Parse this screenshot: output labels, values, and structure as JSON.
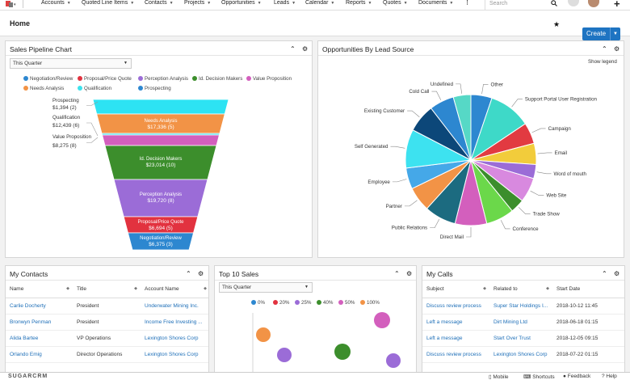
{
  "nav": {
    "items": [
      "Accounts",
      "Quoted Line Items",
      "Contacts",
      "Projects",
      "Opportunities",
      "Leads",
      "Calendar",
      "Reports",
      "Quotes",
      "Documents"
    ],
    "search_placeholder": "Search"
  },
  "header": {
    "title": "Home",
    "create_label": "Create"
  },
  "pipeline": {
    "title": "Sales Pipeline Chart",
    "filter": "This Quarter",
    "chart_data": {
      "type": "funnel",
      "legend": [
        {
          "name": "Negotiation/Review",
          "color": "#2d87d0"
        },
        {
          "name": "Proposal/Price Quote",
          "color": "#e2323f"
        },
        {
          "name": "Perception Analysis",
          "color": "#9b6cd7"
        },
        {
          "name": "Id. Decision Makers",
          "color": "#3c8e2c"
        },
        {
          "name": "Value Proposition",
          "color": "#d35fbd"
        },
        {
          "name": "Needs Analysis",
          "color": "#f29346"
        },
        {
          "name": "Qualification",
          "color": "#3de2ec"
        },
        {
          "name": "Prospecting",
          "color": "#2d87d0"
        }
      ],
      "stages": [
        {
          "name": "Prospecting",
          "value": "$1,394 (2)",
          "color": "#2de3f3"
        },
        {
          "name": "Needs Analysis",
          "value": "$17,336 (5)",
          "color": "#f29346"
        },
        {
          "name": "Qualification",
          "value": "$12,439 (6)",
          "color": "#3de2ec"
        },
        {
          "name": "Value Proposition",
          "value": "$8,275 (8)",
          "color": "#d35fbd"
        },
        {
          "name": "Id. Decision Makers",
          "value": "$23,014 (10)",
          "color": "#3c8e2c"
        },
        {
          "name": "Perception Analysis",
          "value": "$19,720 (8)",
          "color": "#9b6cd7"
        },
        {
          "name": "Proposal/Price Quote",
          "value": "$6,694 (5)",
          "color": "#e2323f"
        },
        {
          "name": "Negotiation/Review",
          "value": "$6,375 (3)",
          "color": "#2d87d0"
        }
      ]
    }
  },
  "leadsource": {
    "title": "Opportunities By Lead Source",
    "show_legend": "Show legend",
    "chart_data": {
      "type": "pie",
      "slices": [
        {
          "label": "Other",
          "value": 6,
          "color": "#2d87d0"
        },
        {
          "label": "Support Portal User Registration",
          "value": 12,
          "color": "#3ed9c8"
        },
        {
          "label": "Campaign",
          "value": 6,
          "color": "#e23a41"
        },
        {
          "label": "Email",
          "value": 6,
          "color": "#f2cc3b"
        },
        {
          "label": "Word of mouth",
          "value": 4,
          "color": "#9b6cd7"
        },
        {
          "label": "Web Site",
          "value": 7,
          "color": "#d889df"
        },
        {
          "label": "Trade Show",
          "value": 4,
          "color": "#3c8e2c"
        },
        {
          "label": "Conference",
          "value": 8,
          "color": "#6bd84a"
        },
        {
          "label": "Direct Mail",
          "value": 9,
          "color": "#d35fbd"
        },
        {
          "label": "Public Relations",
          "value": 9,
          "color": "#1c6b80"
        },
        {
          "label": "Partner",
          "value": 7,
          "color": "#f29346"
        },
        {
          "label": "Employee",
          "value": 6,
          "color": "#45a8e8"
        },
        {
          "label": "Self Generated",
          "value": 11,
          "color": "#3de2f0"
        },
        {
          "label": "Existing Customer",
          "value": 8,
          "color": "#0c4779"
        },
        {
          "label": "Cold Call",
          "value": 7,
          "color": "#2d87d0"
        },
        {
          "label": "Undefined",
          "value": 5,
          "color": "#56d8c6"
        }
      ]
    }
  },
  "contacts": {
    "title": "My Contacts",
    "columns": [
      "Name",
      "Title",
      "Account Name"
    ],
    "rows": [
      [
        "Carlie Docherty",
        "President",
        "Underwater Mining Inc."
      ],
      [
        "Bronwyn Penman",
        "President",
        "Income Free Investing ..."
      ],
      [
        "Alida Bartee",
        "VP Operations",
        "Lexington Shores Corp"
      ],
      [
        "Orlando Emig",
        "Director Operations",
        "Lexington Shores Corp"
      ]
    ]
  },
  "topsales": {
    "title": "Top 10 Sales",
    "filter": "This Quarter",
    "chart_data": {
      "type": "scatter",
      "legend": [
        {
          "name": "0%",
          "color": "#2d87d0"
        },
        {
          "name": "20%",
          "color": "#e2323f"
        },
        {
          "name": "25%",
          "color": "#9b6cd7"
        },
        {
          "name": "40%",
          "color": "#3c8e2c"
        },
        {
          "name": "50%",
          "color": "#d35fbd"
        },
        {
          "name": "100%",
          "color": "#f29346"
        }
      ]
    }
  },
  "calls": {
    "title": "My Calls",
    "columns": [
      "Subject",
      "Related to",
      "Start Date"
    ],
    "rows": [
      [
        "Discuss review process",
        "Super Star Holdings I...",
        "2018-10-12 11:45"
      ],
      [
        "Left a message",
        "Dirt Mining Ltd",
        "2018-06-18 01:15"
      ],
      [
        "Left a message",
        "Start Over Trust",
        "2018-12-05 09:15"
      ],
      [
        "Discuss review process",
        "Lexington Shores Corp",
        "2018-07-22 01:15"
      ]
    ]
  },
  "footer": {
    "brand": "SUGARCRM",
    "mobile": "Mobile",
    "shortcuts": "Shortcuts",
    "feedback": "Feedback",
    "help": "Help"
  }
}
